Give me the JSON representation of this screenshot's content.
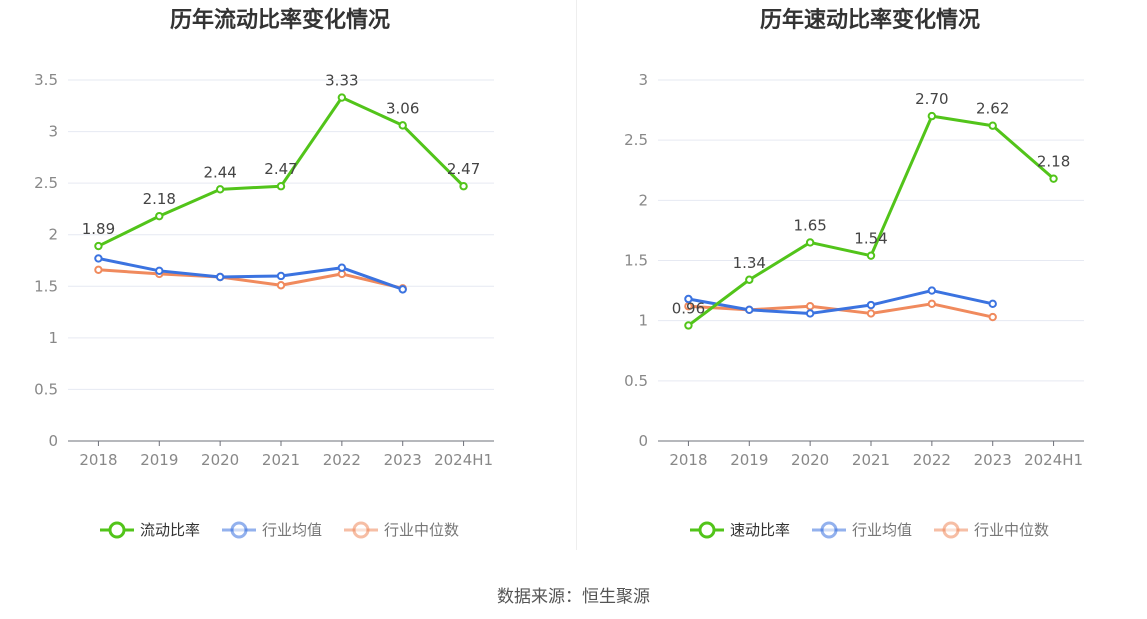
{
  "source": "数据来源：恒生聚源",
  "chart_data": [
    {
      "type": "line",
      "title": "历年流动比率变化情况",
      "categories": [
        "2018",
        "2019",
        "2020",
        "2021",
        "2022",
        "2023",
        "2024H1"
      ],
      "ylim": [
        0,
        3.5
      ],
      "yticks": [
        "0",
        "0.5",
        "1",
        "1.5",
        "2",
        "2.5",
        "3",
        "3.5"
      ],
      "yticks_values": [
        0,
        0.5,
        1,
        1.5,
        2,
        2.5,
        3,
        3.5
      ],
      "grid": true,
      "legend_position": "bottom-center",
      "series": [
        {
          "name": "流动比率",
          "color": "#52c41a",
          "values": [
            1.89,
            2.18,
            2.44,
            2.47,
            3.33,
            3.06,
            2.47
          ],
          "labels": [
            "1.89",
            "2.18",
            "2.44",
            "2.47",
            "3.33",
            "3.06",
            "2.47"
          ]
        },
        {
          "name": "行业均值",
          "color": "#3b73e0",
          "values": [
            1.77,
            1.65,
            1.59,
            1.6,
            1.68,
            1.47,
            null
          ]
        },
        {
          "name": "行业中位数",
          "color": "#f08a5d",
          "values": [
            1.66,
            1.62,
            1.59,
            1.51,
            1.62,
            1.48,
            null
          ]
        }
      ]
    },
    {
      "type": "line",
      "title": "历年速动比率变化情况",
      "categories": [
        "2018",
        "2019",
        "2020",
        "2021",
        "2022",
        "2023",
        "2024H1"
      ],
      "ylim": [
        0,
        3
      ],
      "yticks": [
        "0",
        "0.5",
        "1",
        "1.5",
        "2",
        "2.5",
        "3"
      ],
      "yticks_values": [
        0,
        0.5,
        1,
        1.5,
        2,
        2.5,
        3
      ],
      "grid": true,
      "legend_position": "bottom-center",
      "series": [
        {
          "name": "速动比率",
          "color": "#52c41a",
          "values": [
            0.96,
            1.34,
            1.65,
            1.54,
            2.7,
            2.62,
            2.18
          ],
          "labels": [
            "0.96",
            "1.34",
            "1.65",
            "1.54",
            "2.70",
            "2.62",
            "2.18"
          ]
        },
        {
          "name": "行业均值",
          "color": "#3b73e0",
          "values": [
            1.18,
            1.09,
            1.06,
            1.13,
            1.25,
            1.14,
            null
          ]
        },
        {
          "name": "行业中位数",
          "color": "#f08a5d",
          "values": [
            1.12,
            1.09,
            1.12,
            1.06,
            1.14,
            1.03,
            null
          ]
        }
      ]
    }
  ]
}
